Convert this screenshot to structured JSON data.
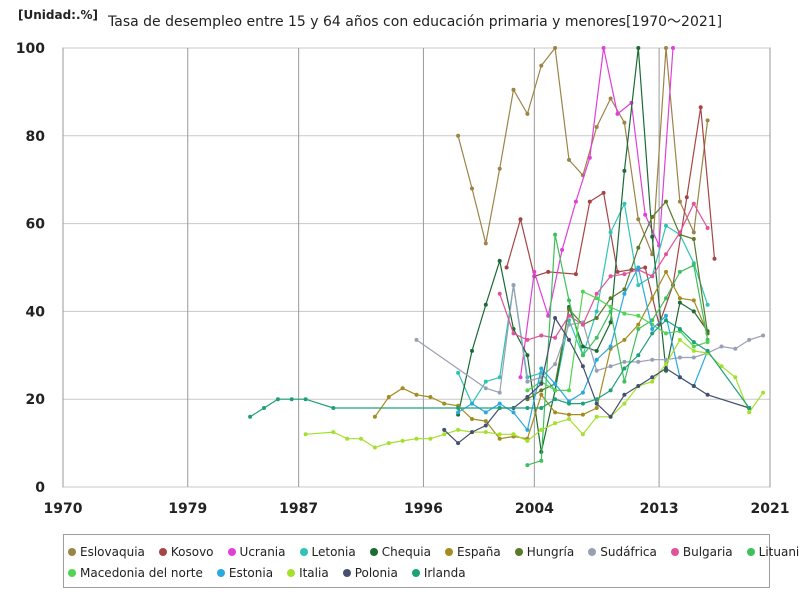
{
  "unit_label": "[Unidad:.%]",
  "chart_data": {
    "type": "line",
    "title": "Tasa de desempleo entre 15 y 64 años con educación primaria y menores[1970～2021]",
    "xlabel": "",
    "ylabel": "",
    "xlim": [
      1970,
      2021
    ],
    "ylim": [
      0,
      100
    ],
    "x_ticks": [
      "1970",
      "1979",
      "1987",
      "1996",
      "2004",
      "2013",
      "2021"
    ],
    "y_ticks": [
      "0",
      "20",
      "40",
      "60",
      "80",
      "100"
    ],
    "grid": true,
    "legend_position": "bottom",
    "series": [
      {
        "name": "Eslovaquia",
        "color": "#9c8448",
        "points": [
          [
            1998.5,
            80
          ],
          [
            1999.5,
            68
          ],
          [
            2000.5,
            55.5
          ],
          [
            2001.5,
            72.5
          ],
          [
            2002.5,
            90.5
          ],
          [
            2003.5,
            85
          ],
          [
            2004.5,
            96
          ],
          [
            2005.5,
            100
          ],
          [
            2006.5,
            74.5
          ],
          [
            2007.5,
            71
          ],
          [
            2008.5,
            82
          ],
          [
            2009.5,
            88.5
          ],
          [
            2010.5,
            83
          ],
          [
            2011.5,
            61
          ],
          [
            2012.5,
            53
          ],
          [
            2013.5,
            100
          ],
          [
            2014.5,
            65
          ],
          [
            2015.5,
            58
          ],
          [
            2016.5,
            83.5
          ]
        ]
      },
      {
        "name": "Kosovo",
        "color": "#a54545",
        "points": [
          [
            2002,
            50
          ],
          [
            2003,
            61
          ],
          [
            2004,
            48
          ],
          [
            2005,
            49
          ],
          [
            2007,
            48.5
          ],
          [
            2008,
            65
          ],
          [
            2009,
            67
          ],
          [
            2010,
            49
          ],
          [
            2011,
            49.5
          ],
          [
            2012,
            50
          ],
          [
            2013,
            37
          ],
          [
            2014,
            46
          ],
          [
            2015,
            66
          ],
          [
            2016,
            86.5
          ],
          [
            2017,
            52
          ]
        ]
      },
      {
        "name": "Ucrania",
        "color": "#e040d8",
        "points": [
          [
            2003,
            25
          ],
          [
            2004,
            49
          ],
          [
            2005,
            39
          ],
          [
            2006,
            54
          ],
          [
            2007,
            65
          ],
          [
            2008,
            75
          ],
          [
            2009,
            100
          ],
          [
            2010,
            85
          ],
          [
            2011,
            87.5
          ],
          [
            2012,
            62
          ],
          [
            2013,
            55
          ],
          [
            2014,
            100
          ]
        ]
      },
      {
        "name": "Letonia",
        "color": "#2ec4b4",
        "points": [
          [
            1998.5,
            26
          ],
          [
            1999.5,
            19
          ],
          [
            2000.5,
            24
          ],
          [
            2001.5,
            25
          ],
          [
            2002.5,
            46
          ],
          [
            2003.5,
            25
          ],
          [
            2004.5,
            26
          ],
          [
            2005.5,
            22
          ],
          [
            2006.5,
            38
          ],
          [
            2007.5,
            30
          ],
          [
            2008.5,
            40
          ],
          [
            2009.5,
            58
          ],
          [
            2010.5,
            64.5
          ],
          [
            2011.5,
            46
          ],
          [
            2012.5,
            48
          ],
          [
            2013.5,
            59.5
          ],
          [
            2014.5,
            57.5
          ],
          [
            2015.5,
            51
          ],
          [
            2016.5,
            41.5
          ]
        ]
      },
      {
        "name": "Chequia",
        "color": "#1b6b35",
        "points": [
          [
            1998.5,
            16.5
          ],
          [
            1999.5,
            31
          ],
          [
            2000.5,
            41.5
          ],
          [
            2001.5,
            51.5
          ],
          [
            2002.5,
            36
          ],
          [
            2003.5,
            30
          ],
          [
            2004.5,
            8
          ],
          [
            2005.5,
            22
          ],
          [
            2006.5,
            41
          ],
          [
            2007.5,
            32
          ],
          [
            2008.5,
            31
          ],
          [
            2009.5,
            37.5
          ],
          [
            2010.5,
            72
          ],
          [
            2011.5,
            100
          ],
          [
            2012.5,
            57
          ],
          [
            2013.5,
            26.5
          ],
          [
            2014.5,
            42
          ],
          [
            2015.5,
            40
          ],
          [
            2016.5,
            35.5
          ]
        ]
      },
      {
        "name": "España",
        "color": "#a48c1f",
        "points": [
          [
            1992.5,
            16
          ],
          [
            1993.5,
            20.5
          ],
          [
            1994.5,
            22.5
          ],
          [
            1995.5,
            21
          ],
          [
            1996.5,
            20.5
          ],
          [
            1997.5,
            19
          ],
          [
            1998.5,
            18.5
          ],
          [
            1999.5,
            15.5
          ],
          [
            2000.5,
            15
          ],
          [
            2001.5,
            11
          ],
          [
            2002.5,
            11.5
          ],
          [
            2003.5,
            11
          ],
          [
            2004.5,
            21
          ],
          [
            2005.5,
            17
          ],
          [
            2006.5,
            16.5
          ],
          [
            2007.5,
            16.5
          ],
          [
            2008.5,
            18
          ],
          [
            2009.5,
            31.5
          ],
          [
            2010.5,
            33.5
          ],
          [
            2011.5,
            37
          ],
          [
            2012.5,
            43
          ],
          [
            2013.5,
            49
          ],
          [
            2014.5,
            43
          ],
          [
            2015.5,
            42.5
          ],
          [
            2016.5,
            35
          ]
        ]
      },
      {
        "name": "Hungría",
        "color": "#5a7a2a",
        "points": [
          [
            2003.5,
            20
          ],
          [
            2004.5,
            22
          ],
          [
            2005.5,
            23.5
          ],
          [
            2006.5,
            40.5
          ],
          [
            2007.5,
            37
          ],
          [
            2008.5,
            38.5
          ],
          [
            2009.5,
            43
          ],
          [
            2010.5,
            45
          ],
          [
            2011.5,
            54.5
          ],
          [
            2012.5,
            61.5
          ],
          [
            2013.5,
            65
          ],
          [
            2014.5,
            57.5
          ],
          [
            2015.5,
            56.5
          ],
          [
            2016.5,
            35
          ]
        ]
      },
      {
        "name": "Sudáfrica",
        "color": "#9aa0b4",
        "points": [
          [
            1995.5,
            33.5
          ],
          [
            2000.5,
            22.5
          ],
          [
            2001.5,
            21.5
          ],
          [
            2002.5,
            46
          ],
          [
            2003.5,
            24
          ],
          [
            2004.5,
            25
          ],
          [
            2005.5,
            28
          ],
          [
            2006.5,
            37
          ],
          [
            2007.5,
            37.5
          ],
          [
            2008.5,
            26.5
          ],
          [
            2009.5,
            27.5
          ],
          [
            2010.5,
            28.5
          ],
          [
            2011.5,
            28.5
          ],
          [
            2012.5,
            29
          ],
          [
            2013.5,
            29
          ],
          [
            2014.5,
            29.5
          ],
          [
            2015.5,
            29.5
          ],
          [
            2016.5,
            30.5
          ],
          [
            2017.5,
            32
          ],
          [
            2018.5,
            31.5
          ],
          [
            2019.5,
            33.5
          ],
          [
            2020.5,
            34.5
          ]
        ]
      },
      {
        "name": "Bulgaria",
        "color": "#e0529a",
        "points": [
          [
            2001.5,
            44
          ],
          [
            2002.5,
            35
          ],
          [
            2003.5,
            33.5
          ],
          [
            2004.5,
            34.5
          ],
          [
            2005.5,
            34
          ],
          [
            2006.5,
            39
          ],
          [
            2007.5,
            37
          ],
          [
            2008.5,
            44
          ],
          [
            2009.5,
            48
          ],
          [
            2010.5,
            48.5
          ],
          [
            2011.5,
            49.5
          ],
          [
            2012.5,
            48
          ],
          [
            2013.5,
            53
          ],
          [
            2014.5,
            58
          ],
          [
            2015.5,
            64.5
          ],
          [
            2016.5,
            59
          ]
        ]
      },
      {
        "name": "Lituania",
        "color": "#3ec05a",
        "points": [
          [
            2003.5,
            5
          ],
          [
            2004.5,
            6
          ],
          [
            2005.5,
            57.5
          ],
          [
            2006.5,
            42.5
          ],
          [
            2007.5,
            30
          ],
          [
            2008.5,
            34
          ],
          [
            2009.5,
            40
          ],
          [
            2010.5,
            24
          ],
          [
            2011.5,
            36
          ],
          [
            2012.5,
            38
          ],
          [
            2013.5,
            43
          ],
          [
            2014.5,
            49
          ],
          [
            2015.5,
            50.5
          ],
          [
            2016.5,
            33.5
          ]
        ]
      },
      {
        "name": "Macedonia del norte",
        "color": "#52d452",
        "points": [
          [
            2003.5,
            22
          ],
          [
            2004.5,
            24
          ],
          [
            2005.5,
            22
          ],
          [
            2006.5,
            22
          ],
          [
            2007.5,
            44.5
          ],
          [
            2008.5,
            43
          ],
          [
            2009.5,
            41
          ],
          [
            2010.5,
            39.5
          ],
          [
            2011.5,
            39
          ],
          [
            2012.5,
            37
          ],
          [
            2013.5,
            35
          ],
          [
            2014.5,
            35.5
          ],
          [
            2015.5,
            32
          ],
          [
            2016.5,
            33
          ]
        ]
      },
      {
        "name": "Estonia",
        "color": "#2aa8e0",
        "points": [
          [
            1998.5,
            17
          ],
          [
            1999.5,
            19
          ],
          [
            2000.5,
            17
          ],
          [
            2001.5,
            19
          ],
          [
            2002.5,
            17
          ],
          [
            2003.5,
            13
          ],
          [
            2004.5,
            27
          ],
          [
            2005.5,
            23.5
          ],
          [
            2006.5,
            19.5
          ],
          [
            2007.5,
            21.5
          ],
          [
            2008.5,
            29
          ],
          [
            2009.5,
            32
          ],
          [
            2010.5,
            44
          ],
          [
            2011.5,
            50
          ],
          [
            2012.5,
            36
          ],
          [
            2013.5,
            39
          ],
          [
            2014.5,
            25
          ],
          [
            2015.5,
            23
          ],
          [
            2016.5,
            31
          ]
        ]
      },
      {
        "name": "Italia",
        "color": "#a4e02e",
        "points": [
          [
            1987.5,
            12
          ],
          [
            1989.5,
            12.5
          ],
          [
            1990.5,
            11
          ],
          [
            1991.5,
            11
          ],
          [
            1992.5,
            9
          ],
          [
            1993.5,
            10
          ],
          [
            1994.5,
            10.5
          ],
          [
            1995.5,
            11
          ],
          [
            1996.5,
            11
          ],
          [
            1997.5,
            12
          ],
          [
            1998.5,
            13
          ],
          [
            1999.5,
            12.5
          ],
          [
            2000.5,
            12.5
          ],
          [
            2001.5,
            12
          ],
          [
            2002.5,
            12
          ],
          [
            2003.5,
            10.5
          ],
          [
            2004.5,
            13
          ],
          [
            2005.5,
            14.5
          ],
          [
            2006.5,
            15.5
          ],
          [
            2007.5,
            12
          ],
          [
            2008.5,
            16
          ],
          [
            2009.5,
            16
          ],
          [
            2010.5,
            19
          ],
          [
            2011.5,
            23
          ],
          [
            2012.5,
            24
          ],
          [
            2013.5,
            28
          ],
          [
            2014.5,
            33.5
          ],
          [
            2015.5,
            31
          ],
          [
            2016.5,
            30.5
          ],
          [
            2017.5,
            27.5
          ],
          [
            2018.5,
            25
          ],
          [
            2019.5,
            17
          ],
          [
            2020.5,
            21.5
          ]
        ]
      },
      {
        "name": "Polonia",
        "color": "#44506e",
        "points": [
          [
            1997.5,
            13
          ],
          [
            1998.5,
            10
          ],
          [
            1999.5,
            12.5
          ],
          [
            2000.5,
            14
          ],
          [
            2001.5,
            18
          ],
          [
            2002.5,
            18
          ],
          [
            2003.5,
            20.5
          ],
          [
            2004.5,
            23.5
          ],
          [
            2005.5,
            38.5
          ],
          [
            2006.5,
            33.5
          ],
          [
            2007.5,
            27.5
          ],
          [
            2008.5,
            19
          ],
          [
            2009.5,
            16
          ],
          [
            2010.5,
            21
          ],
          [
            2011.5,
            23
          ],
          [
            2012.5,
            25
          ],
          [
            2013.5,
            27
          ],
          [
            2014.5,
            25
          ],
          [
            2015.5,
            23
          ],
          [
            2016.5,
            21
          ],
          [
            2019.5,
            18
          ]
        ]
      },
      {
        "name": "Irlanda",
        "color": "#1ea07a",
        "points": [
          [
            1983.5,
            16
          ],
          [
            1984.5,
            18
          ],
          [
            1985.5,
            20
          ],
          [
            1986.5,
            20
          ],
          [
            1987.5,
            20
          ],
          [
            1989.5,
            18
          ],
          [
            1998.5,
            18
          ],
          [
            2001.5,
            18
          ],
          [
            2003.5,
            18
          ],
          [
            2004.5,
            18
          ],
          [
            2005.5,
            20
          ],
          [
            2006.5,
            19
          ],
          [
            2007.5,
            19
          ],
          [
            2008.5,
            20
          ],
          [
            2009.5,
            22
          ],
          [
            2010.5,
            27
          ],
          [
            2011.5,
            30
          ],
          [
            2012.5,
            35
          ],
          [
            2013.5,
            38
          ],
          [
            2014.5,
            36
          ],
          [
            2015.5,
            33
          ],
          [
            2016.5,
            31
          ],
          [
            2019.5,
            18
          ]
        ]
      }
    ]
  }
}
